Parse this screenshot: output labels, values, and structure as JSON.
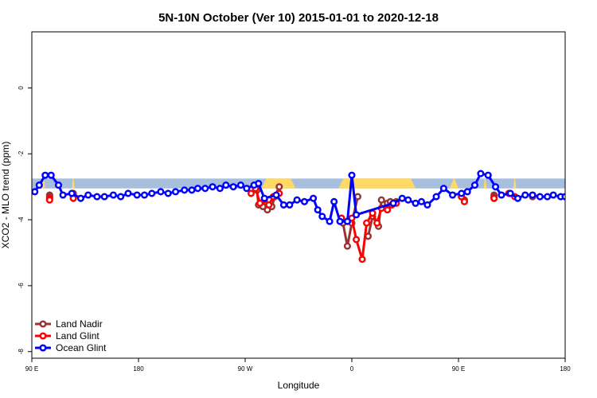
{
  "chart_data": {
    "type": "line",
    "title": "5N-10N October (Ver 10)   2015-01-01 to 2020-12-18",
    "xlabel": "Longitude",
    "ylabel": "XCO2 - MLO trend (ppm)",
    "xlim": [
      90,
      450
    ],
    "ylim": [
      -8.2,
      1.7
    ],
    "x_ticks": [
      {
        "value": 90,
        "label": "90 E"
      },
      {
        "value": 162,
        "label": "180"
      },
      {
        "value": 234,
        "label": "90 W"
      },
      {
        "value": 306,
        "label": "0"
      },
      {
        "value": 378,
        "label": "90 E"
      },
      {
        "value": 450,
        "label": "180"
      }
    ],
    "y_ticks": [
      {
        "value": 0,
        "label": "0"
      },
      {
        "value": -2,
        "label": "-2"
      },
      {
        "value": -4,
        "label": "-4"
      },
      {
        "value": -6,
        "label": "-6"
      },
      {
        "value": -8,
        "label": "-8"
      }
    ],
    "grid": false,
    "legend_position": "bottom-left",
    "band": {
      "y_min": -3.05,
      "y_max": -2.75,
      "color": "#a7bfdd",
      "land_color": "#ffd966"
    },
    "land_ranges": [
      [
        97,
        99
      ],
      [
        117,
        119
      ],
      [
        245,
        268
      ],
      [
        297,
        349
      ],
      [
        372,
        378
      ],
      [
        395,
        397
      ],
      [
        415,
        417
      ]
    ],
    "series": [
      {
        "name": "Land Nadir",
        "color": "#993333",
        "segments": [
          [
            [
              102,
              -3.25
            ],
            [
              102,
              -3.3
            ]
          ],
          [
            [
              118,
              -3.2
            ],
            [
              118,
              -3.25
            ]
          ],
          [
            [
              242,
              -3.1
            ],
            [
              243,
              -3.55
            ],
            [
              246,
              -3.6
            ],
            [
              249,
              -3.7
            ],
            [
              252,
              -3.6
            ],
            [
              254,
              -3.3
            ],
            [
              257,
              -3.0
            ]
          ],
          [
            [
              300,
              -4.1
            ],
            [
              303,
              -4.8
            ],
            [
              306,
              -4.1
            ],
            [
              310,
              -3.3
            ]
          ],
          [
            [
              317,
              -4.5
            ],
            [
              320,
              -3.9
            ],
            [
              324,
              -4.2
            ],
            [
              326,
              -3.4
            ],
            [
              330,
              -3.5
            ]
          ],
          [
            [
              332,
              -3.45
            ],
            [
              336,
              -3.45
            ]
          ],
          [
            [
              380,
              -3.3
            ],
            [
              382,
              -3.4
            ]
          ],
          [
            [
              402,
              -3.25
            ],
            [
              402,
              -3.3
            ]
          ],
          [
            [
              428,
              -3.3
            ],
            [
              428,
              -3.3
            ]
          ]
        ]
      },
      {
        "name": "Land Glint",
        "color": "#ff0000",
        "segments": [
          [
            [
              102,
              -3.35
            ],
            [
              102,
              -3.4
            ]
          ],
          [
            [
              118,
              -3.3
            ],
            [
              118,
              -3.35
            ]
          ],
          [
            [
              238,
              -3.2
            ],
            [
              241,
              -3.05
            ],
            [
              244,
              -3.5
            ],
            [
              247,
              -3.4
            ],
            [
              250,
              -3.55
            ],
            [
              253,
              -3.3
            ],
            [
              257,
              -3.2
            ]
          ],
          [
            [
              299,
              -3.95
            ],
            [
              303,
              -4.05
            ],
            [
              306,
              -3.95
            ],
            [
              309,
              -4.6
            ],
            [
              313,
              -5.2
            ],
            [
              316,
              -4.1
            ],
            [
              320,
              -3.8
            ],
            [
              323,
              -4.1
            ],
            [
              326,
              -3.65
            ],
            [
              330,
              -3.7
            ],
            [
              333,
              -3.55
            ],
            [
              336,
              -3.5
            ]
          ],
          [
            [
              380,
              -3.3
            ],
            [
              382,
              -3.45
            ]
          ],
          [
            [
              402,
              -3.35
            ],
            [
              402,
              -3.35
            ]
          ],
          [
            [
              412,
              -3.2
            ],
            [
              416,
              -3.3
            ]
          ]
        ]
      },
      {
        "name": "Ocean Glint",
        "color": "#0000ff",
        "points": [
          [
            92,
            -3.15
          ],
          [
            95,
            -2.95
          ],
          [
            99,
            -2.65
          ],
          [
            103,
            -2.65
          ],
          [
            108,
            -2.95
          ],
          [
            111,
            -3.25
          ],
          [
            117,
            -3.2
          ],
          [
            123,
            -3.35
          ],
          [
            128,
            -3.25
          ],
          [
            134,
            -3.3
          ],
          [
            139,
            -3.3
          ],
          [
            145,
            -3.25
          ],
          [
            150,
            -3.3
          ],
          [
            155,
            -3.2
          ],
          [
            161,
            -3.25
          ],
          [
            166,
            -3.25
          ],
          [
            171,
            -3.2
          ],
          [
            177,
            -3.15
          ],
          [
            182,
            -3.2
          ],
          [
            187,
            -3.15
          ],
          [
            193,
            -3.1
          ],
          [
            198,
            -3.1
          ],
          [
            202,
            -3.05
          ],
          [
            207,
            -3.05
          ],
          [
            212,
            -3.0
          ],
          [
            217,
            -3.05
          ],
          [
            221,
            -2.95
          ],
          [
            226,
            -3.0
          ],
          [
            231,
            -2.95
          ],
          [
            235,
            -3.05
          ],
          [
            240,
            -2.95
          ],
          [
            243,
            -2.9
          ],
          [
            247,
            -3.35
          ],
          [
            255,
            -3.25
          ],
          [
            260,
            -3.55
          ],
          [
            264,
            -3.55
          ],
          [
            269,
            -3.4
          ],
          [
            274,
            -3.45
          ],
          [
            280,
            -3.35
          ],
          [
            283,
            -3.7
          ],
          [
            286,
            -3.9
          ],
          [
            291,
            -4.05
          ],
          [
            294,
            -3.45
          ],
          [
            298,
            -4.05
          ],
          [
            303,
            -4.05
          ],
          [
            306,
            -2.65
          ],
          [
            309,
            -3.85
          ],
          [
            334,
            -3.5
          ],
          [
            340,
            -3.35
          ],
          [
            344,
            -3.4
          ],
          [
            349,
            -3.5
          ],
          [
            353,
            -3.45
          ],
          [
            357,
            -3.55
          ],
          [
            363,
            -3.3
          ],
          [
            368,
            -3.05
          ],
          [
            374,
            -3.25
          ],
          [
            380,
            -3.2
          ],
          [
            384,
            -3.15
          ],
          [
            389,
            -2.95
          ],
          [
            393,
            -2.6
          ],
          [
            398,
            -2.65
          ],
          [
            403,
            -3.0
          ],
          [
            407,
            -3.25
          ],
          [
            413,
            -3.2
          ],
          [
            418,
            -3.35
          ],
          [
            423,
            -3.25
          ],
          [
            428,
            -3.25
          ],
          [
            433,
            -3.3
          ],
          [
            438,
            -3.3
          ],
          [
            442,
            -3.25
          ],
          [
            447,
            -3.3
          ],
          [
            450,
            -3.3
          ],
          [
            453,
            -3.2
          ]
        ]
      }
    ]
  }
}
